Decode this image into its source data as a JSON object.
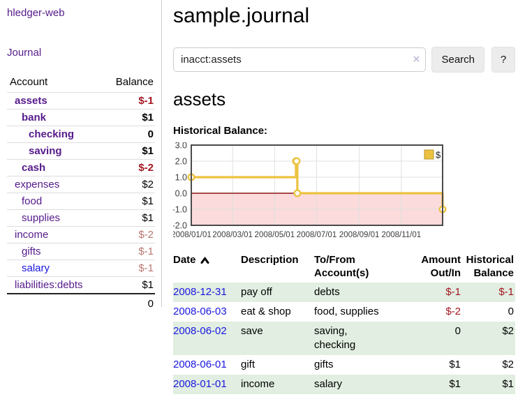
{
  "app": {
    "title": "hledger-web",
    "nav_journal": "Journal"
  },
  "colors": {
    "link_purple": "#551a8b",
    "link_blue": "#1a16e0",
    "negative": "#a31621",
    "negative_light": "#b9776f",
    "row_stripe_green": "#e1eee1",
    "series_gold": "#edc240"
  },
  "sidebar": {
    "header": {
      "account": "Account",
      "balance": "Balance"
    },
    "accounts": [
      {
        "name": "assets",
        "balance": "$-1",
        "level": 1,
        "bold": true,
        "neg": true
      },
      {
        "name": "bank",
        "balance": "$1",
        "level": 2,
        "bold": true
      },
      {
        "name": "checking",
        "balance": "0",
        "level": 3,
        "bold": true
      },
      {
        "name": "saving",
        "balance": "$1",
        "level": 3,
        "bold": true
      },
      {
        "name": "cash",
        "balance": "$-2",
        "level": 2,
        "bold": true,
        "neg": true
      },
      {
        "name": "expenses",
        "balance": "$2",
        "level": 1
      },
      {
        "name": "food",
        "balance": "$1",
        "level": 2
      },
      {
        "name": "supplies",
        "balance": "$1",
        "level": 2
      },
      {
        "name": "income",
        "balance": "$-2",
        "level": 1,
        "neg_light": true
      },
      {
        "name": "gifts",
        "balance": "$-1",
        "level": 2,
        "neg_light": true
      },
      {
        "name": "salary",
        "balance": "$-1",
        "level": 2,
        "neg_light": true,
        "blue": true
      },
      {
        "name": "liabilities:debts",
        "balance": "$1",
        "level": 1
      }
    ],
    "total": "0"
  },
  "main": {
    "title": "sample.journal",
    "search": {
      "value": "inacct:assets",
      "clear_icon": "×",
      "button_label": "Search",
      "help_label": "?"
    },
    "account_heading": "assets",
    "chart_title": "Historical Balance:"
  },
  "chart_data": {
    "type": "line",
    "step": true,
    "title": "Historical Balance:",
    "series": [
      {
        "name": "$",
        "color": "#edc240",
        "points": [
          {
            "x": "2008/01/01",
            "y": 1
          },
          {
            "x": "2008/06/01",
            "y": 2
          },
          {
            "x": "2008/06/02",
            "y": 2
          },
          {
            "x": "2008/06/03",
            "y": 0
          },
          {
            "x": "2008/12/31",
            "y": -1
          }
        ]
      }
    ],
    "xlim": [
      "2008/01/01",
      "2008/12/31"
    ],
    "ylim": [
      -2,
      3
    ],
    "y_ticks": [
      3.0,
      2.0,
      1.0,
      0.0,
      -1.0,
      -2.0
    ],
    "x_ticks": [
      "2008/01/01",
      "2008/03/01",
      "2008/05/01",
      "2008/07/01",
      "2008/09/01",
      "2008/11/01"
    ],
    "grid": true,
    "legend_position": "top-right",
    "negative_region_color": "#fbdbdb",
    "zero_line_color": "#8b1515"
  },
  "register": {
    "columns": {
      "date": "Date",
      "description": "Description",
      "accounts": "To/From Account(s)",
      "amount": "Amount Out/In",
      "balance": "Historical Balance"
    },
    "rows": [
      {
        "date": "2008-12-31",
        "description": "pay off",
        "accounts": "debts",
        "amount": "$-1",
        "amount_neg": true,
        "balance": "$-1",
        "balance_neg": true
      },
      {
        "date": "2008-06-03",
        "description": "eat & shop",
        "accounts": "food, supplies",
        "amount": "$-2",
        "amount_neg": true,
        "balance": "0"
      },
      {
        "date": "2008-06-02",
        "description": "save",
        "accounts": "saving, checking",
        "amount": "0",
        "balance": "$2"
      },
      {
        "date": "2008-06-01",
        "description": "gift",
        "accounts": "gifts",
        "amount": "$1",
        "balance": "$2"
      },
      {
        "date": "2008-01-01",
        "description": "income",
        "accounts": "salary",
        "amount": "$1",
        "balance": "$1"
      }
    ]
  }
}
